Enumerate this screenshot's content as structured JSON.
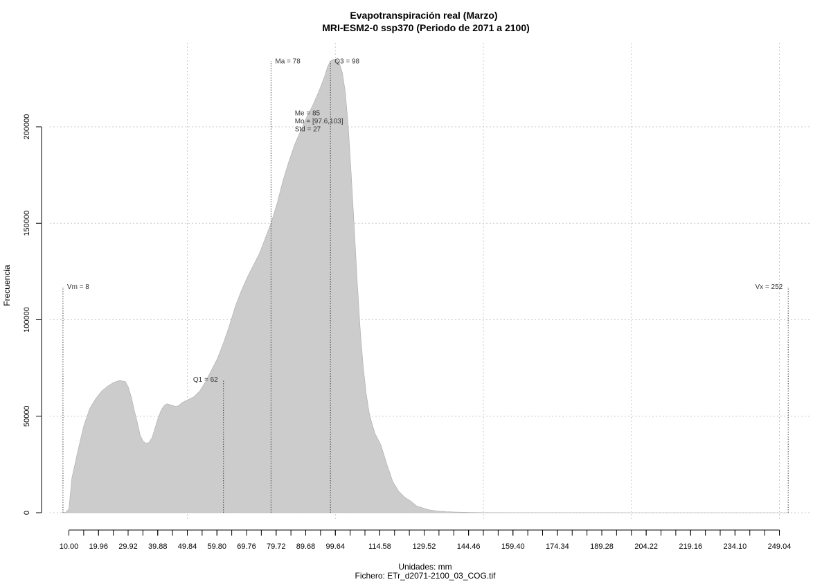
{
  "chart_data": {
    "type": "area",
    "title": "Evapotranspiración real (Marzo)",
    "subtitle": "MRI-ESM2-0 ssp370 (Periodo de 2071 a 2100)",
    "xlabel": "Unidades: mm",
    "ylabel": "Frecuencia",
    "footer": "Fichero: ETr_d2071-2100_03_COG.tif",
    "xlim": [
      8,
      252
    ],
    "ylim": [
      0,
      235000
    ],
    "grid": true,
    "fill_color": "#cccccc",
    "x_ticks": [
      10.0,
      19.96,
      29.92,
      39.88,
      49.84,
      59.8,
      69.76,
      79.72,
      89.68,
      99.64,
      114.58,
      129.52,
      144.46,
      159.4,
      174.34,
      189.28,
      204.22,
      219.16,
      234.1,
      249.04
    ],
    "x_tick_labels": [
      "10.00",
      "19.96",
      "29.92",
      "39.88",
      "49.84",
      "59.80",
      "69.76",
      "79.72",
      "89.68",
      "99.64",
      "114.58",
      "129.52",
      "144.46",
      "159.40",
      "174.34",
      "189.28",
      "204.22",
      "219.16",
      "234.10",
      "249.04"
    ],
    "x_grid": [
      49.84,
      99.64,
      149.44,
      199.24,
      249.04
    ],
    "y_ticks": [
      0,
      50000,
      100000,
      150000,
      200000
    ],
    "y_tick_labels": [
      "0",
      "50000",
      "100000",
      "150000",
      "200000"
    ],
    "density": {
      "x": [
        8,
        9,
        10,
        11,
        13,
        15,
        17,
        19,
        21,
        23,
        25,
        27,
        29,
        30,
        31,
        32,
        33,
        34,
        35,
        36,
        37,
        38,
        39,
        40,
        41,
        42,
        43,
        44,
        45,
        46,
        47,
        48,
        50,
        52,
        54,
        56,
        58,
        60,
        62,
        64,
        66,
        68,
        70,
        72,
        74,
        76,
        78,
        80,
        82,
        84,
        86,
        88,
        90,
        92,
        94,
        96,
        97,
        98,
        99,
        100,
        101,
        102,
        103,
        104,
        105,
        106,
        107,
        108,
        109,
        110,
        111,
        112,
        113,
        115,
        117,
        119,
        121,
        123,
        125,
        127,
        129,
        131,
        134,
        137,
        140,
        145,
        150,
        160,
        180,
        200,
        230,
        252
      ],
      "y": [
        0,
        300,
        2000,
        18000,
        32000,
        45000,
        54000,
        59000,
        63000,
        65500,
        67500,
        68500,
        68000,
        65000,
        60000,
        53000,
        47000,
        40000,
        37000,
        36000,
        36500,
        39000,
        44000,
        49000,
        53000,
        55500,
        56500,
        56000,
        55500,
        55000,
        55500,
        57000,
        58500,
        60000,
        63000,
        68000,
        74000,
        80000,
        88000,
        97000,
        107000,
        115000,
        122000,
        128000,
        134000,
        142000,
        150000,
        160000,
        172000,
        182000,
        191000,
        198000,
        205000,
        211000,
        218000,
        226000,
        231000,
        234000,
        235000,
        235000,
        233000,
        228000,
        218000,
        200000,
        175000,
        148000,
        120000,
        95000,
        76000,
        62000,
        52000,
        46000,
        41000,
        35000,
        25000,
        16000,
        11000,
        8000,
        6000,
        3500,
        2500,
        1500,
        900,
        500,
        350,
        150,
        80,
        30,
        10,
        5,
        2,
        0
      ]
    },
    "markers": [
      {
        "label": "Vm = 8",
        "x": 8,
        "top": 117000,
        "text_anchor": "start",
        "text_y": 117000
      },
      {
        "label": "Q1 = 62",
        "x": 62,
        "top": 69000,
        "text_anchor": "end",
        "text_y": 69000
      },
      {
        "label": "Ma = 78",
        "x": 78,
        "top": 234000,
        "text_anchor": "start",
        "text_y": 234000
      },
      {
        "label": "Q3 = 98",
        "x": 98,
        "top": 234000,
        "text_anchor": "start",
        "text_y": 234000
      },
      {
        "label": "Vx = 252",
        "x": 252,
        "top": 117000,
        "text_anchor": "end",
        "text_y": 117000
      }
    ],
    "stats_text": [
      "Me = 85",
      "Mo = [97.6,103]",
      "Std = 27"
    ],
    "stats_anchor": {
      "x": 86,
      "y": 206000
    }
  }
}
